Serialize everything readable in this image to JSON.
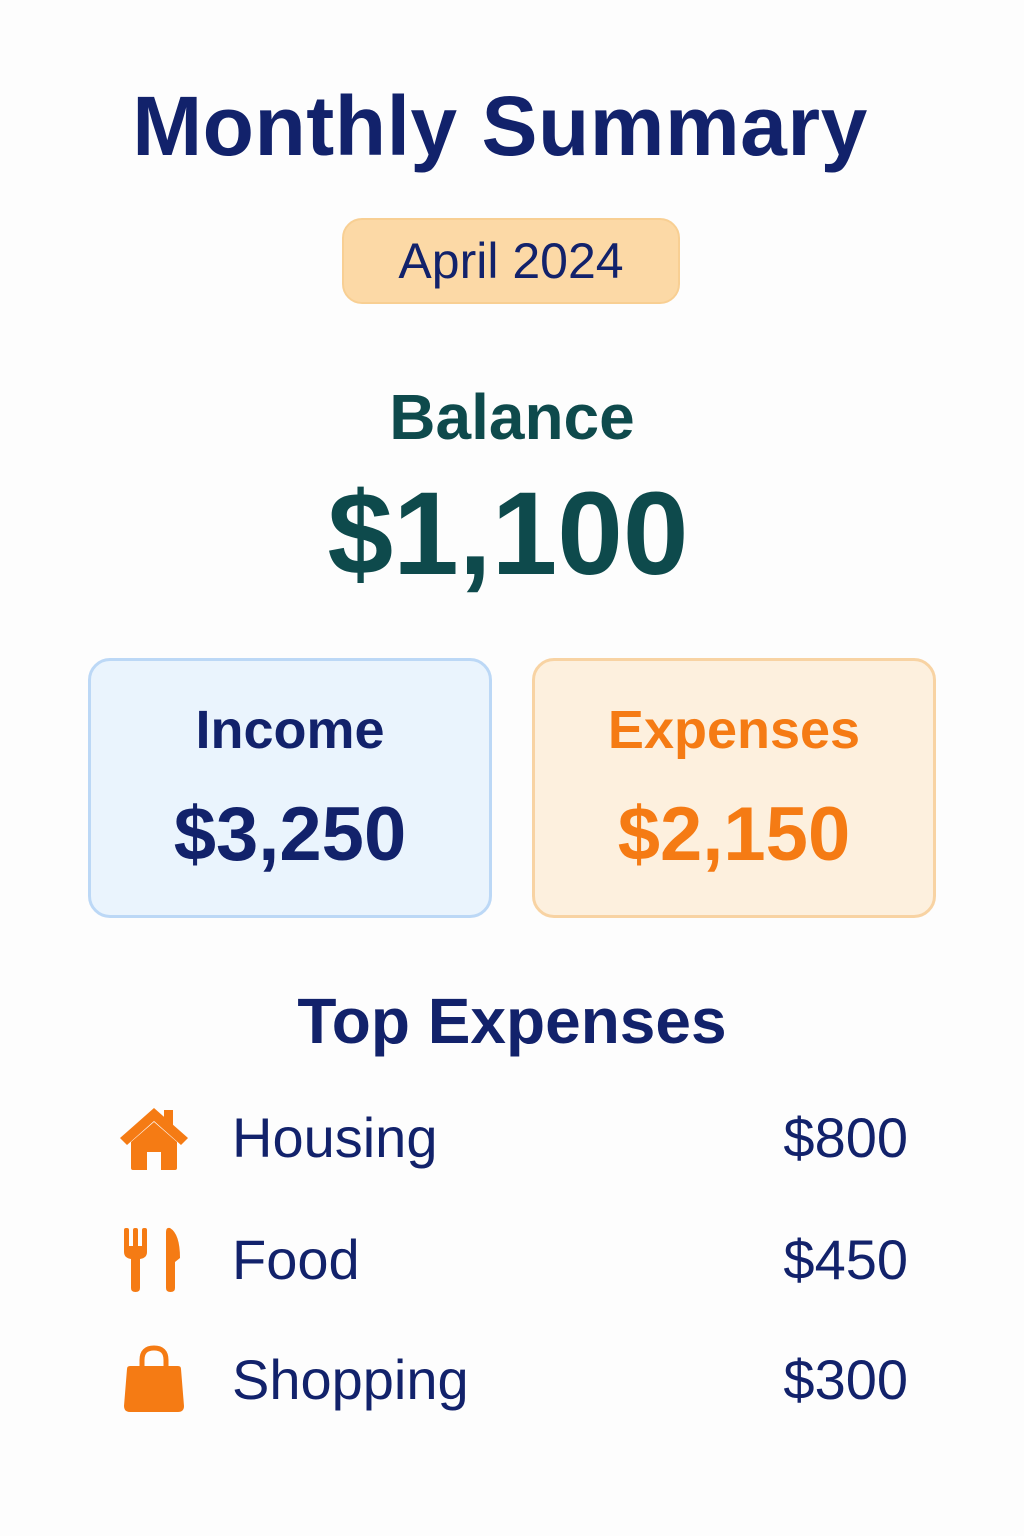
{
  "header": {
    "title": "Monthly Summary",
    "month": "April 2024"
  },
  "balance": {
    "label": "Balance",
    "value": "$1,100"
  },
  "cards": {
    "income": {
      "label": "Income",
      "value": "$3,250"
    },
    "expenses": {
      "label": "Expenses",
      "value": "$2,150"
    }
  },
  "top_expenses": {
    "title": "Top Expenses",
    "items": [
      {
        "label": "Housing",
        "value": "$800",
        "icon": "house-icon"
      },
      {
        "label": "Food",
        "value": "$450",
        "icon": "fork-knife-icon"
      },
      {
        "label": "Shopping",
        "value": "$300",
        "icon": "shopping-bag-icon"
      }
    ]
  },
  "colors": {
    "primary_text": "#12226b",
    "balance_text": "#0e4a4c",
    "accent_orange": "#f57b14",
    "month_pill_bg": "#fcd9a6",
    "income_card_bg": "#eaf4fd",
    "expense_card_bg": "#fdf0de"
  }
}
